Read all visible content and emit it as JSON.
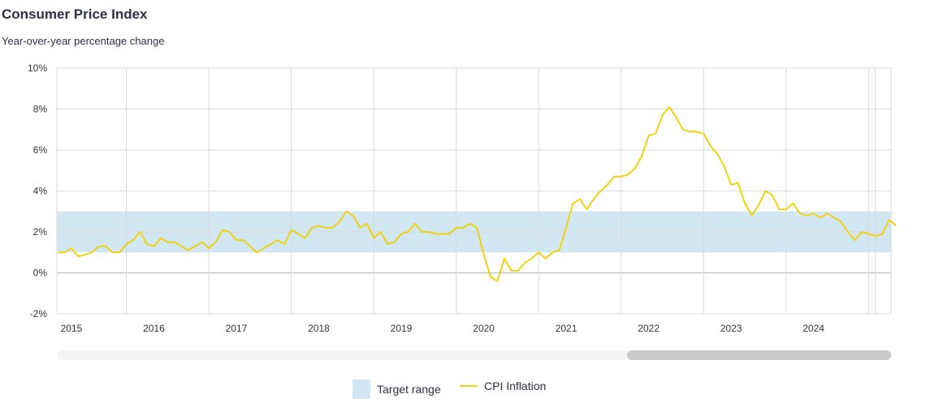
{
  "title": "Consumer Price Index",
  "subtitle": "Year-over-year percentage change",
  "colors": {
    "line": "#f2d20f",
    "band": "#d2e7f4",
    "grid": "#d9d9d9"
  },
  "legend": {
    "band_label": "Target range",
    "line_label": "CPI Inflation"
  },
  "chart_data": {
    "type": "line",
    "title": "Consumer Price Index",
    "subtitle": "Year-over-year percentage change",
    "xlabel": "",
    "ylabel": "",
    "ylim": [
      -2,
      10
    ],
    "y_ticks": [
      "-2%",
      "0%",
      "2%",
      "4%",
      "6%",
      "8%",
      "10%"
    ],
    "x_ticks": [
      "2015",
      "2016",
      "2017",
      "2018",
      "2019",
      "2020",
      "2021",
      "2022",
      "2023",
      "2024"
    ],
    "grid": true,
    "legend_position": "bottom",
    "target_range": {
      "name": "Target range",
      "low": 1,
      "high": 3
    },
    "series": [
      {
        "name": "CPI Inflation",
        "start": "2015-01",
        "frequency": "monthly",
        "values": [
          1.0,
          1.0,
          1.2,
          0.8,
          0.9,
          1.0,
          1.3,
          1.3,
          1.0,
          1.0,
          1.4,
          1.6,
          2.0,
          1.4,
          1.3,
          1.7,
          1.5,
          1.5,
          1.3,
          1.1,
          1.3,
          1.5,
          1.2,
          1.5,
          2.1,
          2.0,
          1.6,
          1.6,
          1.3,
          1.0,
          1.2,
          1.4,
          1.6,
          1.4,
          2.1,
          1.9,
          1.7,
          2.2,
          2.3,
          2.2,
          2.2,
          2.5,
          3.0,
          2.8,
          2.2,
          2.4,
          1.7,
          2.0,
          1.4,
          1.5,
          1.9,
          2.0,
          2.4,
          2.0,
          2.0,
          1.9,
          1.9,
          1.9,
          2.2,
          2.2,
          2.4,
          2.2,
          0.9,
          -0.2,
          -0.4,
          0.7,
          0.1,
          0.1,
          0.5,
          0.7,
          1.0,
          0.7,
          1.0,
          1.1,
          2.2,
          3.4,
          3.6,
          3.1,
          3.6,
          4.0,
          4.3,
          4.7,
          4.7,
          4.8,
          5.1,
          5.7,
          6.7,
          6.8,
          7.7,
          8.1,
          7.6,
          7.0,
          6.9,
          6.9,
          6.8,
          6.2,
          5.8,
          5.2,
          4.3,
          4.4,
          3.4,
          2.8,
          3.3,
          4.0,
          3.8,
          3.1,
          3.1,
          3.4,
          2.9,
          2.8,
          2.9,
          2.7,
          2.9,
          2.7,
          2.5,
          2.0,
          1.6,
          2.0,
          1.9,
          1.8,
          1.9,
          2.6,
          2.3
        ]
      }
    ]
  }
}
